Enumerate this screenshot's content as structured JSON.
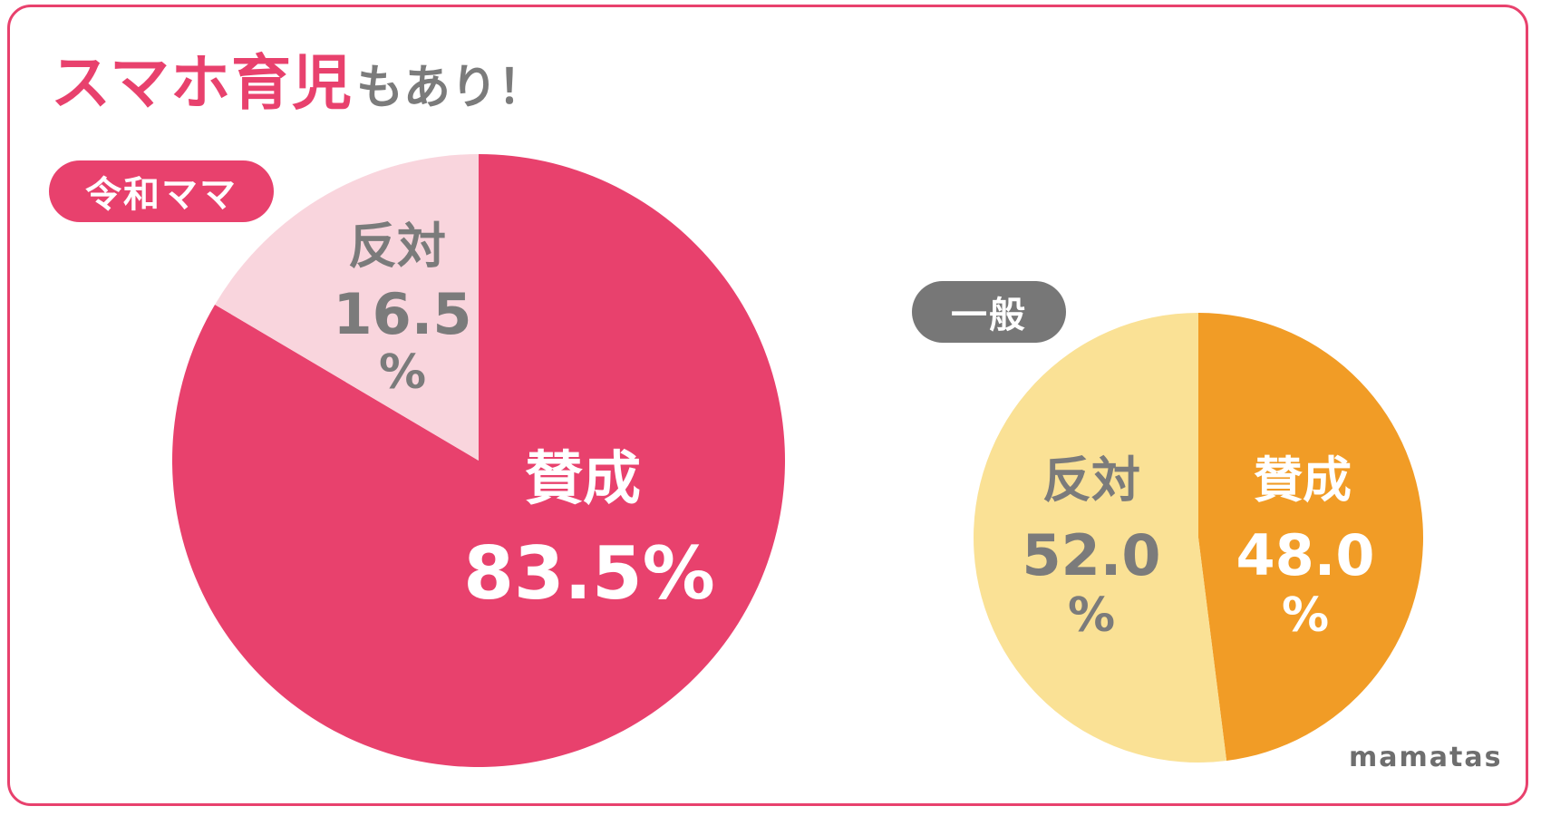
{
  "title": {
    "main": "スマホ育児",
    "sub": "もあり！"
  },
  "brand": "mamatas",
  "colors": {
    "frame": "#e8416d",
    "reiwa_yes": "#e8416d",
    "reiwa_no": "#f9d5dd",
    "general_yes": "#f19c26",
    "general_no": "#fae195",
    "label_white": "#ffffff",
    "label_gray": "#7b7b7b"
  },
  "chart_data": [
    {
      "type": "pie",
      "title": "令和ママ",
      "slices": [
        {
          "label": "賛成",
          "value": 83.5,
          "value_text": "83.5%"
        },
        {
          "label": "反対",
          "value": 16.5,
          "value_text": "16.5",
          "unit": "%"
        }
      ]
    },
    {
      "type": "pie",
      "title": "一般",
      "slices": [
        {
          "label": "賛成",
          "value": 48.0,
          "value_text": "48.0",
          "unit": "%"
        },
        {
          "label": "反対",
          "value": 52.0,
          "value_text": "52.0",
          "unit": "%"
        }
      ]
    }
  ]
}
